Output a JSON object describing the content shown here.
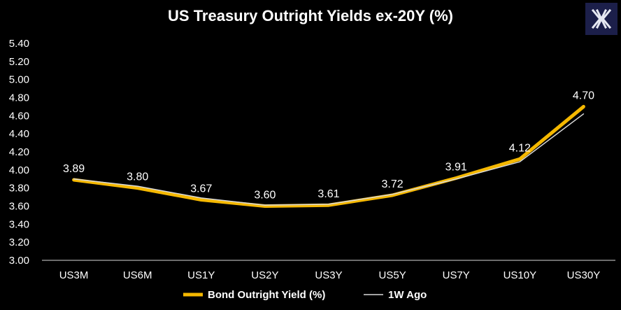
{
  "chart_data": {
    "type": "line",
    "title": "US Treasury Outright Yields ex-20Y (%)",
    "categories": [
      "US3M",
      "US6M",
      "US1Y",
      "US2Y",
      "US3Y",
      "US5Y",
      "US7Y",
      "US10Y",
      "US30Y"
    ],
    "yticks": [
      "3.00",
      "3.20",
      "3.40",
      "3.60",
      "3.80",
      "4.00",
      "4.20",
      "4.40",
      "4.60",
      "4.80",
      "5.00",
      "5.20",
      "5.40"
    ],
    "ylim": [
      3.0,
      5.4
    ],
    "grid": false,
    "legend_position": "bottom",
    "series": [
      {
        "name": "Bond Outright Yield (%)",
        "color": "#F5B800",
        "values": [
          3.89,
          3.8,
          3.67,
          3.6,
          3.61,
          3.72,
          3.91,
          4.12,
          4.7
        ],
        "labels": [
          "3.89",
          "3.80",
          "3.67",
          "3.60",
          "3.61",
          "3.72",
          "3.91",
          "4.12",
          "4.70"
        ]
      },
      {
        "name": "1W Ago",
        "color": "#D9D9D9",
        "values": [
          3.9,
          3.82,
          3.69,
          3.61,
          3.62,
          3.73,
          3.9,
          4.09,
          4.62
        ]
      }
    ]
  },
  "brand": {
    "logo_icon": "x-logo-icon",
    "logo_bg": "#1C1F4A"
  }
}
